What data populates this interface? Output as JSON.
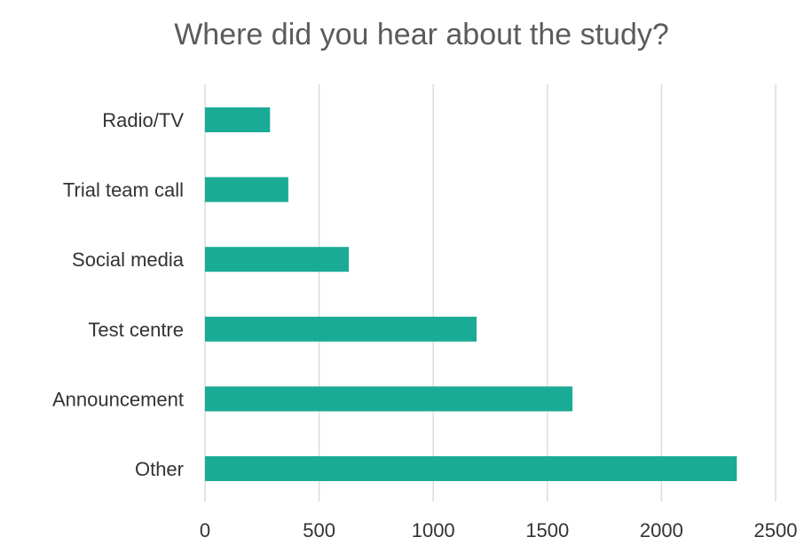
{
  "chart_data": {
    "type": "bar",
    "orientation": "horizontal",
    "title": "Where did you hear about the study?",
    "categories": [
      "Radio/TV",
      "Trial team call",
      "Social media",
      "Test centre",
      "Announcement",
      "Other"
    ],
    "values": [
      285,
      365,
      630,
      1190,
      1610,
      2330
    ],
    "xlim": [
      0,
      2500
    ],
    "xticks": [
      "0",
      "500",
      "1000",
      "1500",
      "2000",
      "2500"
    ],
    "grid": true,
    "bar_color": "#1aab96"
  }
}
